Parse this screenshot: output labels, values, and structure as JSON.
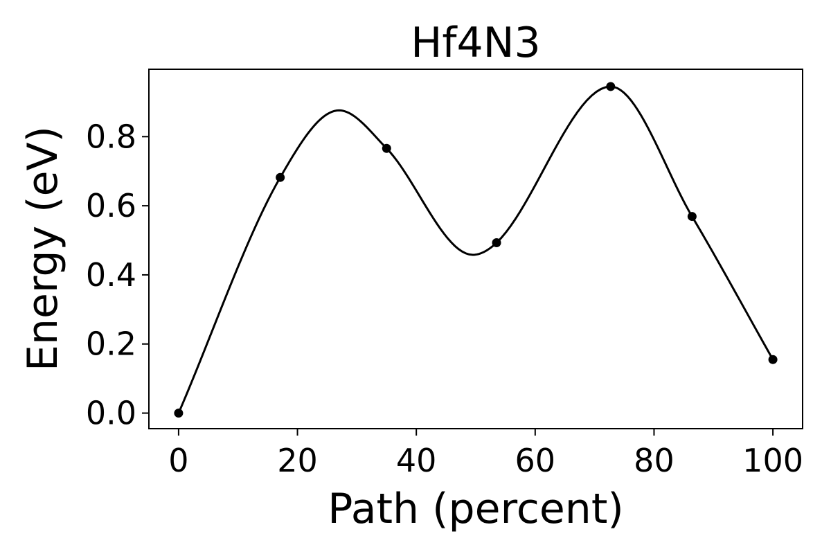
{
  "chart_data": {
    "type": "line",
    "title": "Hf4N3",
    "xlabel": "Path (percent)",
    "ylabel": "Energy (eV)",
    "xlim": [
      -5,
      105
    ],
    "ylim": [
      -0.045,
      0.995
    ],
    "xticks": [
      0,
      20,
      40,
      60,
      80,
      100
    ],
    "xtick_labels": [
      "0",
      "20",
      "40",
      "60",
      "80",
      "100"
    ],
    "yticks": [
      0.0,
      0.2,
      0.4,
      0.6,
      0.8
    ],
    "ytick_labels": [
      "0.0",
      "0.2",
      "0.4",
      "0.6",
      "0.8"
    ],
    "grid": false,
    "legend": false,
    "series": [
      {
        "color": "#000000",
        "markers": "circle",
        "points": [
          {
            "x": 0.0,
            "y": 0.0
          },
          {
            "x": 17.1,
            "y": 0.682
          },
          {
            "x": 35.0,
            "y": 0.766
          },
          {
            "x": 53.5,
            "y": 0.493
          },
          {
            "x": 72.7,
            "y": 0.945
          },
          {
            "x": 86.4,
            "y": 0.569
          },
          {
            "x": 100.0,
            "y": 0.155
          }
        ],
        "curve_extrema": [
          {
            "x": 27.0,
            "y": 0.876
          },
          {
            "x": 49.5,
            "y": 0.458
          }
        ]
      }
    ]
  }
}
